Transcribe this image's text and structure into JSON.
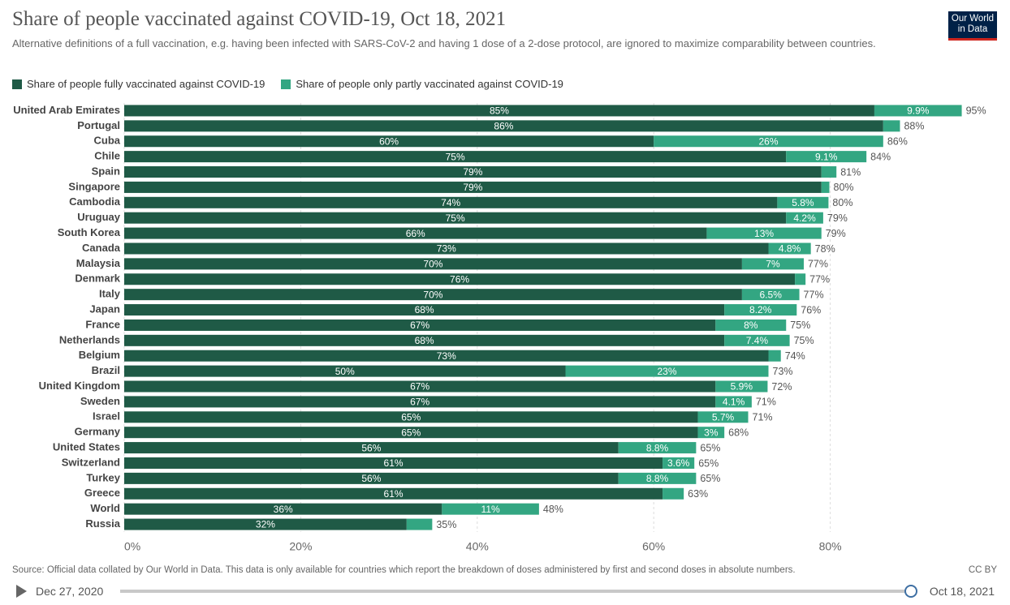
{
  "chart_data": {
    "type": "stacked-barh",
    "title": "Share of people vaccinated against COVID-19, Oct 18, 2021",
    "subtitle": "Alternative definitions of a full vaccination, e.g. having been infected with SARS-CoV-2 and having 1 dose of a 2-dose protocol, are ignored to maximize comparability between countries.",
    "categories": [
      "United Arab Emirates",
      "Portugal",
      "Cuba",
      "Chile",
      "Spain",
      "Singapore",
      "Cambodia",
      "Uruguay",
      "South Korea",
      "Canada",
      "Malaysia",
      "Denmark",
      "Italy",
      "Japan",
      "France",
      "Netherlands",
      "Belgium",
      "Brazil",
      "United Kingdom",
      "Sweden",
      "Israel",
      "Germany",
      "United States",
      "Switzerland",
      "Turkey",
      "Greece",
      "World",
      "Russia"
    ],
    "series": [
      {
        "name": "Share of people fully vaccinated against COVID-19",
        "color": "#1f5a46",
        "values": [
          85,
          86,
          60,
          75,
          79,
          79,
          74,
          75,
          66,
          73,
          70,
          76,
          70,
          68,
          67,
          68,
          73,
          50,
          67,
          67,
          65,
          65,
          56,
          61,
          56,
          61,
          36,
          32
        ],
        "value_labels": [
          "85%",
          "86%",
          "60%",
          "75%",
          "79%",
          "79%",
          "74%",
          "75%",
          "66%",
          "73%",
          "70%",
          "76%",
          "70%",
          "68%",
          "67%",
          "68%",
          "73%",
          "50%",
          "67%",
          "67%",
          "65%",
          "65%",
          "56%",
          "61%",
          "56%",
          "61%",
          "36%",
          "32%"
        ]
      },
      {
        "name": "Share of people only partly vaccinated against COVID-19",
        "color": "#33a682",
        "values": [
          9.9,
          1.9,
          26,
          9.1,
          1.7,
          0.9,
          5.8,
          4.2,
          13,
          4.8,
          7,
          1.2,
          6.5,
          8.2,
          8,
          7.4,
          1.4,
          23,
          5.9,
          4.1,
          5.7,
          3,
          8.8,
          3.6,
          8.8,
          2.4,
          11,
          2.9
        ],
        "value_labels": [
          "9.9%",
          null,
          "26%",
          "9.1%",
          null,
          null,
          "5.8%",
          "4.2%",
          "13%",
          "4.8%",
          "7%",
          null,
          "6.5%",
          "8.2%",
          "8%",
          "7.4%",
          null,
          "23%",
          "5.9%",
          "4.1%",
          "5.7%",
          "3%",
          "8.8%",
          "3.6%",
          "8.8%",
          null,
          "11%",
          null
        ]
      }
    ],
    "totals": [
      95,
      88,
      86,
      84,
      81,
      80,
      80,
      79,
      79,
      78,
      77,
      77,
      77,
      76,
      75,
      75,
      74,
      73,
      72,
      71,
      71,
      68,
      65,
      65,
      65,
      63,
      48,
      35
    ],
    "total_labels": [
      "95%",
      "88%",
      "86%",
      "84%",
      "81%",
      "80%",
      "80%",
      "79%",
      "79%",
      "78%",
      "77%",
      "77%",
      "77%",
      "76%",
      "75%",
      "75%",
      "74%",
      "73%",
      "72%",
      "71%",
      "71%",
      "68%",
      "65%",
      "65%",
      "65%",
      "63%",
      "48%",
      "35%"
    ],
    "xlim": [
      0,
      100
    ],
    "xticks": [
      {
        "value": 0,
        "label": "0%"
      },
      {
        "value": 20,
        "label": "20%"
      },
      {
        "value": 40,
        "label": "40%"
      },
      {
        "value": 60,
        "label": "60%"
      },
      {
        "value": 80,
        "label": "80%"
      }
    ],
    "grid": true
  },
  "logo": "Our World in Data",
  "source": "Source: Official data collated by Our World in Data. This data is only available for countries which report the breakdown of doses administered by first and second doses in absolute numbers.",
  "license": "CC BY",
  "timeline": {
    "start": "Dec 27, 2020",
    "end": "Oct 18, 2021"
  }
}
